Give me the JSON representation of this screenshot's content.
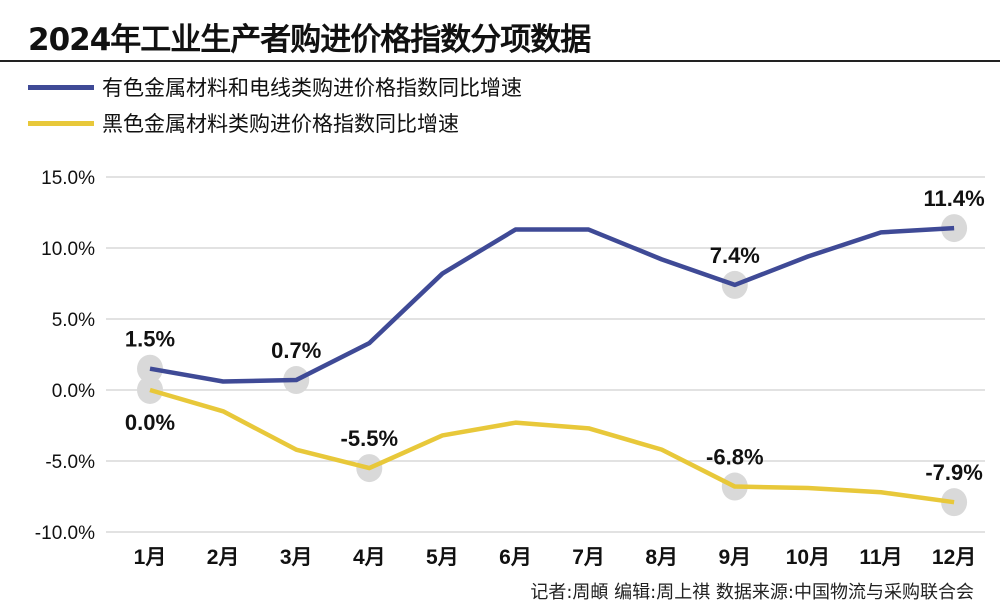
{
  "chart_data": {
    "type": "line",
    "title": "2024年工业生产者购进价格指数分项数据",
    "categories": [
      "1月",
      "2月",
      "3月",
      "4月",
      "5月",
      "6月",
      "7月",
      "8月",
      "9月",
      "10月",
      "11月",
      "12月"
    ],
    "ylim": [
      -10,
      15
    ],
    "yticks": [
      "15.0%",
      "10.0%",
      "5.0%",
      "0.0%",
      "-5.0%",
      "-10.0%"
    ],
    "ytick_values": [
      15,
      10,
      5,
      0,
      -5,
      -10
    ],
    "grid": true,
    "legend_position": "top-left",
    "series": [
      {
        "name": "有色金属材料和电线类购进价格指数同比增速",
        "color": "#3f4a96",
        "values": [
          1.5,
          0.6,
          0.7,
          3.3,
          8.2,
          11.3,
          11.3,
          9.2,
          7.4,
          9.4,
          11.1,
          11.4
        ],
        "labels": [
          {
            "index": 0,
            "text": "1.5%"
          },
          {
            "index": 2,
            "text": "0.7%"
          },
          {
            "index": 8,
            "text": "7.4%"
          },
          {
            "index": 11,
            "text": "11.4%"
          }
        ]
      },
      {
        "name": "黑色金属材料类购进价格指数同比增速",
        "color": "#e8c83a",
        "values": [
          0.0,
          -1.5,
          -4.2,
          -5.5,
          -3.2,
          -2.3,
          -2.7,
          -4.2,
          -6.8,
          -6.9,
          -7.2,
          -7.9
        ],
        "labels": [
          {
            "index": 0,
            "text": "0.0%"
          },
          {
            "index": 3,
            "text": "-5.5%"
          },
          {
            "index": 8,
            "text": "-6.8%"
          },
          {
            "index": 11,
            "text": "-7.9%"
          }
        ]
      }
    ]
  },
  "footer": "记者:周頔  编辑:周上祺  数据来源:中国物流与采购联合会"
}
